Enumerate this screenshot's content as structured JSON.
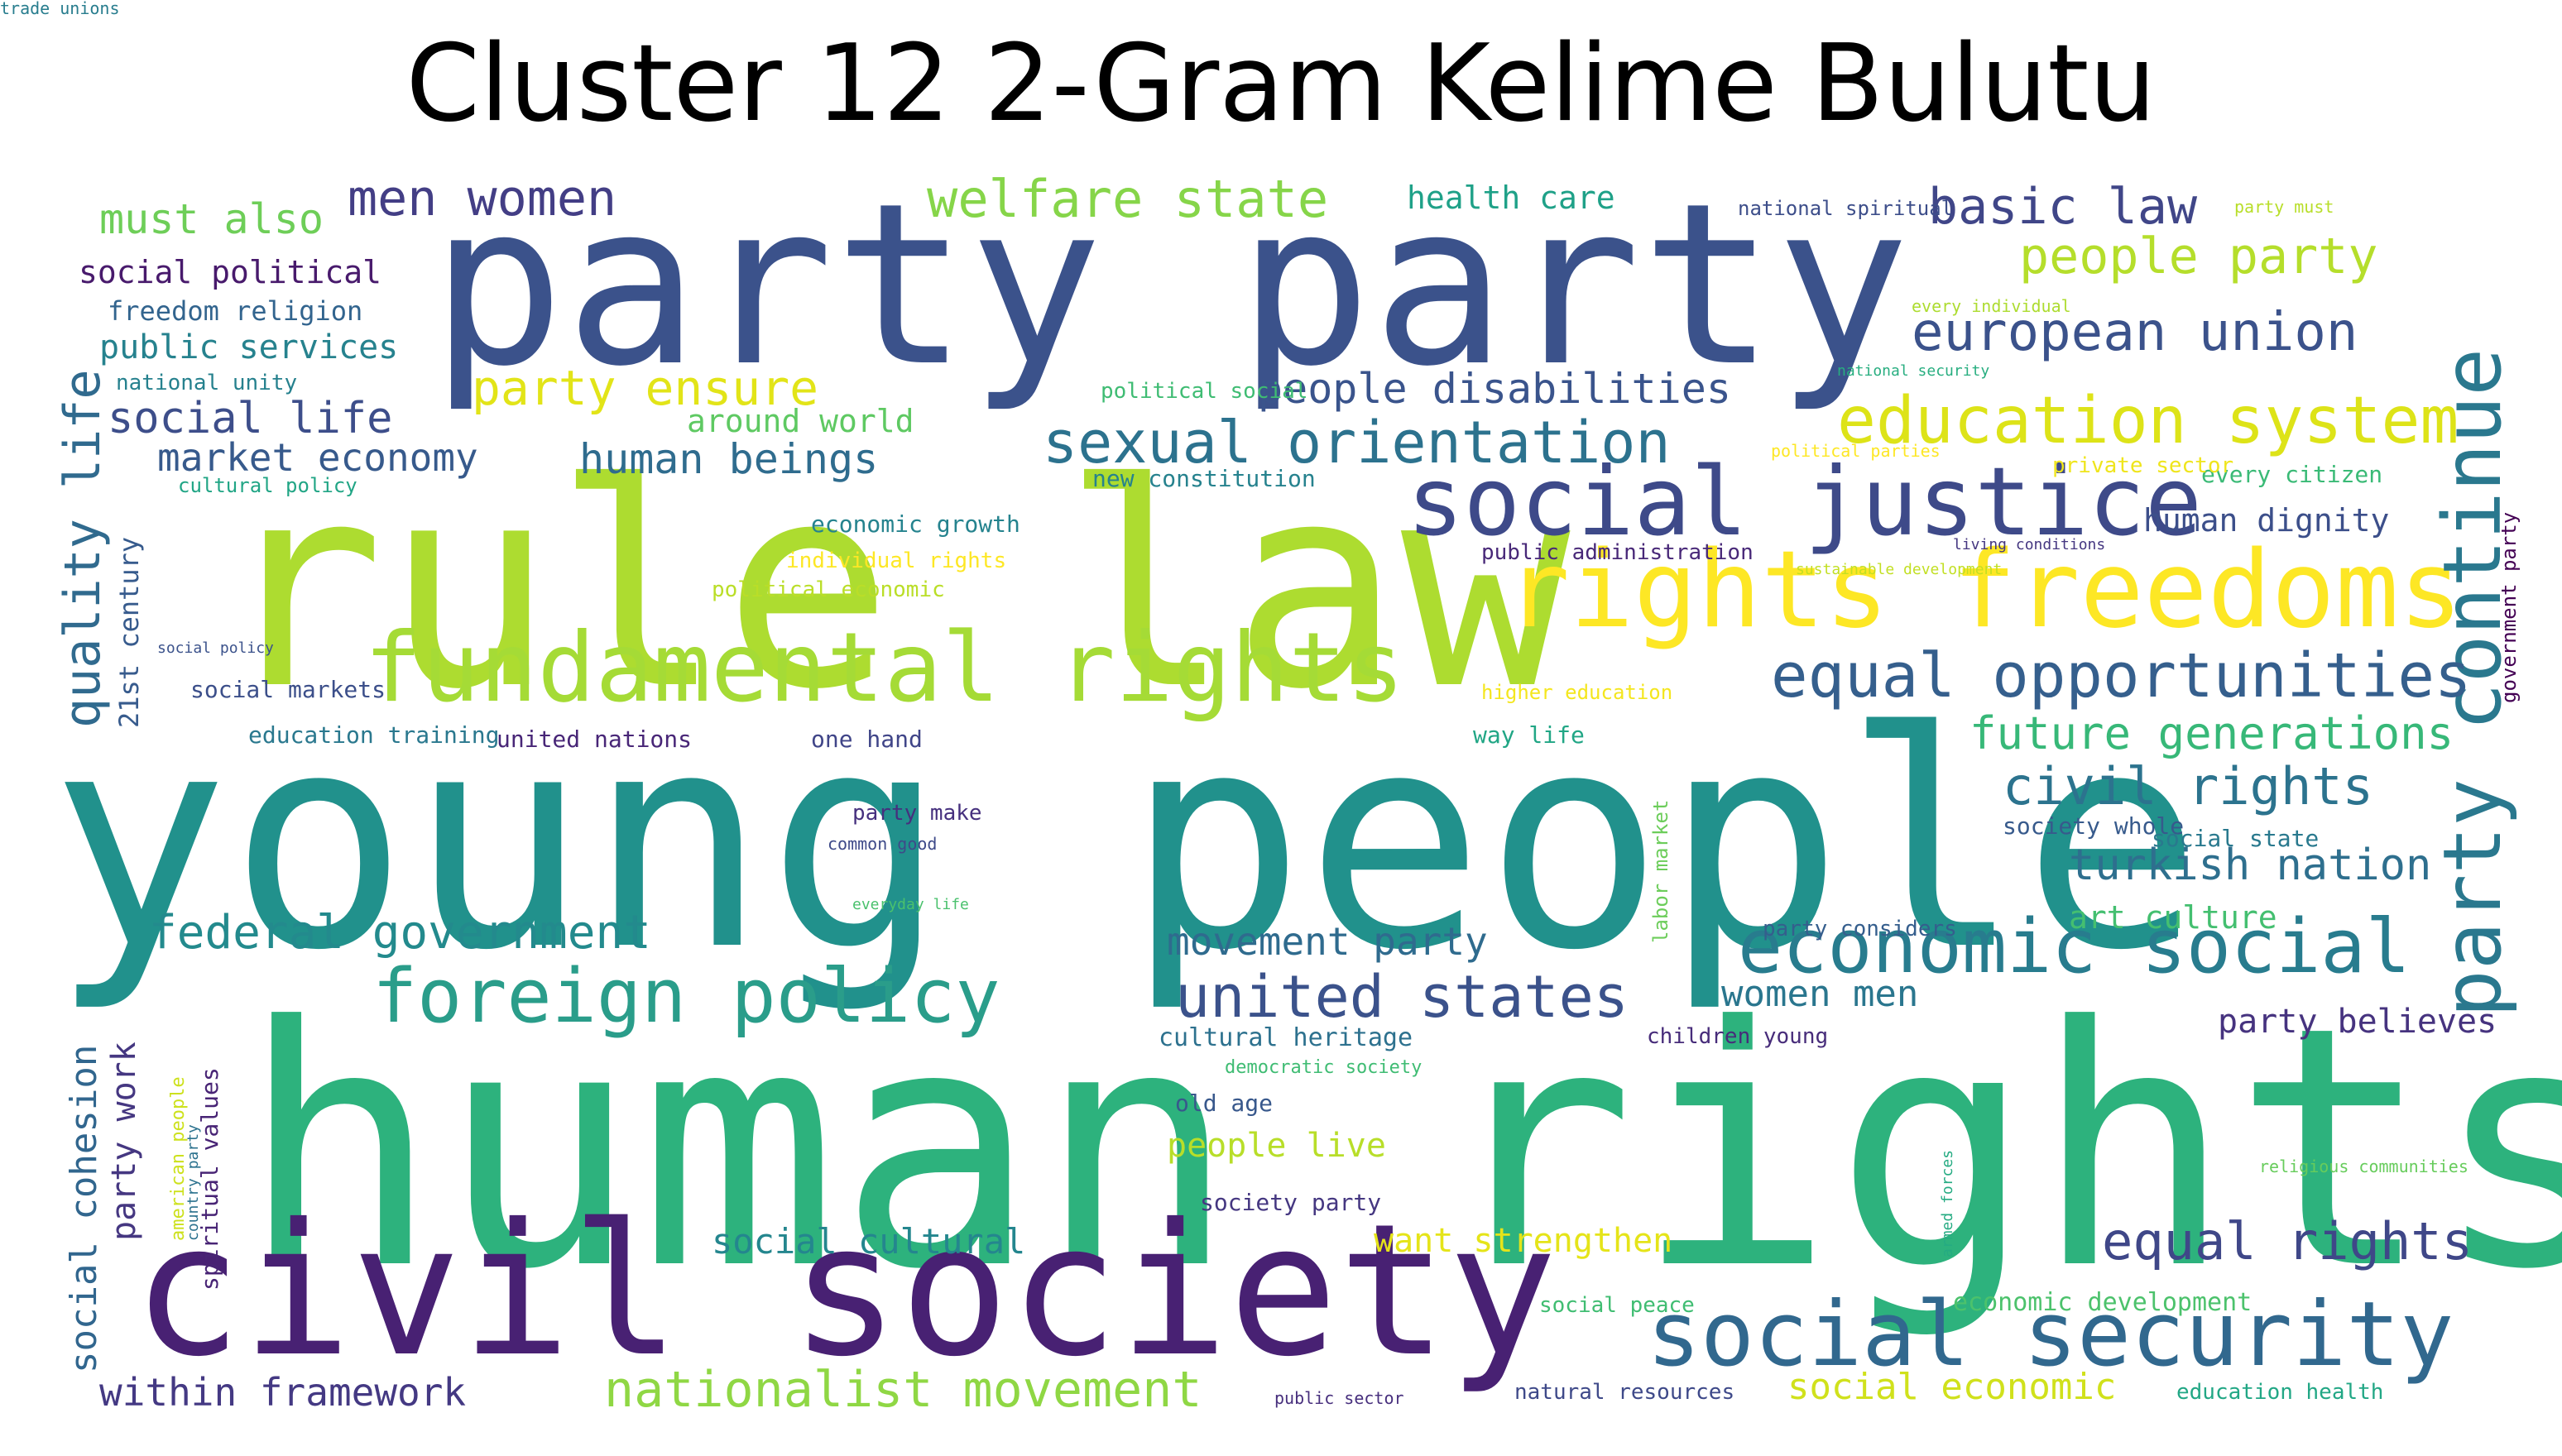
{
  "title": "Cluster 12 2-Gram Kelime Bulutu",
  "words": [
    {
      "text": "human rights",
      "color": "#2db27d"
    },
    {
      "text": "young people",
      "color": "#21918c"
    },
    {
      "text": "rule law",
      "color": "#addc30"
    },
    {
      "text": "party party",
      "color": "#3b528b"
    },
    {
      "text": "civil society",
      "color": "#482173"
    },
    {
      "text": "fundamental rights",
      "color": "#a5db36"
    },
    {
      "text": "rights freedoms",
      "color": "#fde725"
    },
    {
      "text": "social justice",
      "color": "#3e4a89"
    },
    {
      "text": "party continue",
      "color": "#2a788e"
    },
    {
      "text": "social security",
      "color": "#31688e"
    },
    {
      "text": "economic social",
      "color": "#287c8e"
    },
    {
      "text": "foreign policy",
      "color": "#2a9d8a"
    },
    {
      "text": "united states",
      "color": "#3b528b"
    },
    {
      "text": "equal opportunities",
      "color": "#355f8d"
    },
    {
      "text": "welfare state",
      "color": "#86d549"
    },
    {
      "text": "sexual orientation",
      "color": "#2c728e"
    },
    {
      "text": "education system",
      "color": "#dde318"
    },
    {
      "text": "european union",
      "color": "#3b528b"
    },
    {
      "text": "men women",
      "color": "#433e85"
    },
    {
      "text": "basic law",
      "color": "#404688"
    },
    {
      "text": "people party",
      "color": "#b5de2b"
    },
    {
      "text": "party ensure",
      "color": "#e2e418"
    },
    {
      "text": "federal government",
      "color": "#238a8d"
    },
    {
      "text": "nationalist movement",
      "color": "#8fd744"
    },
    {
      "text": "civil rights",
      "color": "#2c738e"
    },
    {
      "text": "equal rights",
      "color": "#3f4788"
    },
    {
      "text": "future generations",
      "color": "#37b878"
    },
    {
      "text": "turkish nation",
      "color": "#2e6f8e"
    },
    {
      "text": "quality life",
      "color": "#306a8e"
    },
    {
      "text": "people disabilities",
      "color": "#3a548c"
    },
    {
      "text": "social life",
      "color": "#3d4e8a"
    },
    {
      "text": "market economy",
      "color": "#375a8c"
    },
    {
      "text": "human beings",
      "color": "#2f6c8e"
    },
    {
      "text": "movement party",
      "color": "#2f6b8e"
    },
    {
      "text": "within framework",
      "color": "#443983"
    },
    {
      "text": "must also",
      "color": "#6ece58"
    },
    {
      "text": "social cohesion",
      "color": "#31668e"
    },
    {
      "text": "public services",
      "color": "#26828e"
    },
    {
      "text": "social political",
      "color": "#481a6c"
    },
    {
      "text": "women men",
      "color": "#2a768e"
    },
    {
      "text": "party work",
      "color": "#453781"
    },
    {
      "text": "social cultural",
      "color": "#24868e"
    },
    {
      "text": "want strengthen",
      "color": "#e5e419"
    },
    {
      "text": "party believes",
      "color": "#46337f"
    },
    {
      "text": "human dignity",
      "color": "#3c4f8a"
    },
    {
      "text": "around world",
      "color": "#5ec962"
    },
    {
      "text": "people live",
      "color": "#b8de29"
    },
    {
      "text": "social economic",
      "color": "#d0e11c"
    },
    {
      "text": "health care",
      "color": "#1fa188"
    },
    {
      "text": "art culture",
      "color": "#44bf70"
    },
    {
      "text": "21st century",
      "color": "#375b8d"
    },
    {
      "text": "freedom religion",
      "color": "#32648e"
    },
    {
      "text": "economic development",
      "color": "#4cc26c"
    },
    {
      "text": "cultural heritage",
      "color": "#2d718e"
    },
    {
      "text": "spiritual values",
      "color": "#482475"
    },
    {
      "text": "national unity",
      "color": "#26818e"
    },
    {
      "text": "social state",
      "color": "#29798e"
    },
    {
      "text": "every citizen",
      "color": "#3aba76"
    },
    {
      "text": "society whole",
      "color": "#375a8c"
    },
    {
      "text": "one hand",
      "color": "#404588"
    },
    {
      "text": "education training",
      "color": "#2a788e"
    },
    {
      "text": "labor market",
      "color": "#6ccd5a"
    },
    {
      "text": "social markets",
      "color": "#3c4f8a"
    },
    {
      "text": "social peace",
      "color": "#40bd72"
    },
    {
      "text": "children young",
      "color": "#472c7a"
    },
    {
      "text": "economic growth",
      "color": "#25838e"
    },
    {
      "text": "party make",
      "color": "#46307e"
    },
    {
      "text": "old age",
      "color": "#38588c"
    },
    {
      "text": "society party",
      "color": "#453781"
    },
    {
      "text": "united nations",
      "color": "#482677"
    },
    {
      "text": "new constitution",
      "color": "#26828e"
    },
    {
      "text": "political social",
      "color": "#3fbc73"
    },
    {
      "text": "way life",
      "color": "#21a685"
    },
    {
      "text": "party considers",
      "color": "#355e8d"
    },
    {
      "text": "natural resources",
      "color": "#3e4989"
    },
    {
      "text": "government party",
      "color": "#440154"
    },
    {
      "text": "public administration",
      "color": "#482878"
    },
    {
      "text": "education health",
      "color": "#22a785"
    },
    {
      "text": "higher education",
      "color": "#f4e61e"
    },
    {
      "text": "private sector",
      "color": "#efe51c"
    },
    {
      "text": "american people",
      "color": "#cde11d"
    },
    {
      "text": "democratic society",
      "color": "#3fbc73"
    },
    {
      "text": "cultural policy",
      "color": "#21a585"
    },
    {
      "text": "political economic",
      "color": "#bade28"
    },
    {
      "text": "individual rights",
      "color": "#fde725"
    },
    {
      "text": "social policy",
      "color": "#3b528b"
    },
    {
      "text": "country party",
      "color": "#2c728e"
    },
    {
      "text": "national spiritual",
      "color": "#3d4e8a"
    },
    {
      "text": "party must",
      "color": "#b8de29"
    },
    {
      "text": "every individual",
      "color": "#addc30"
    },
    {
      "text": "national security",
      "color": "#28ae80"
    },
    {
      "text": "political parties",
      "color": "#fde725"
    },
    {
      "text": "living conditions",
      "color": "#453781"
    },
    {
      "text": "sustainable development",
      "color": "#c2df23"
    },
    {
      "text": "common good",
      "color": "#3e4a89"
    },
    {
      "text": "everyday life",
      "color": "#4ac16d"
    },
    {
      "text": "armed forces",
      "color": "#25ab82"
    },
    {
      "text": "religious communities",
      "color": "#67cc5c"
    },
    {
      "text": "public sector",
      "color": "#472f7d"
    },
    {
      "text": "trade unions",
      "color": "#287d8e"
    }
  ]
}
